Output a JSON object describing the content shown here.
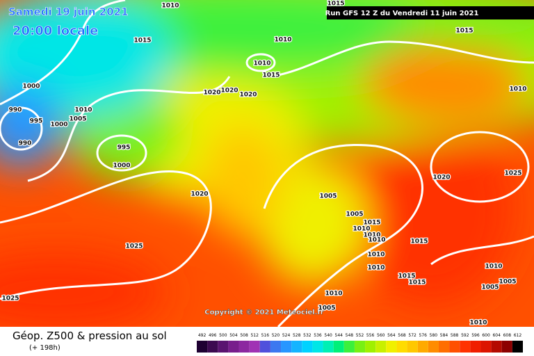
{
  "header": {
    "date": "Samedi 19 juin 2021",
    "time": "20:00 locale",
    "run": "Run GFS 12 Z du Vendredi 11 juin 2021"
  },
  "isobar_labels": [
    1010,
    1015,
    1015,
    1015,
    1010,
    1010,
    1015,
    1010,
    1000,
    990,
    995,
    990,
    1010,
    1005,
    1000,
    1020,
    1020,
    1020,
    995,
    1000,
    1020,
    1025,
    1020,
    1005,
    1005,
    1015,
    1010,
    1010,
    1010,
    1015,
    1025,
    1010,
    1010,
    1010,
    1015,
    1015,
    1005,
    1005,
    1025,
    1010,
    1005,
    1010
  ],
  "copyright": "Copyright © 2021 Meteociel.fr",
  "footer": {
    "title": "Géop. Z500 & pression au sol",
    "lead": "(+ 198h)"
  },
  "scale": {
    "values": [
      492,
      496,
      500,
      504,
      508,
      512,
      516,
      520,
      524,
      528,
      532,
      536,
      540,
      544,
      548,
      552,
      556,
      560,
      564,
      568,
      572,
      576,
      580,
      584,
      588,
      592,
      596,
      600,
      604,
      608,
      612
    ],
    "colors": [
      "#1e0032",
      "#3c0a50",
      "#5a1470",
      "#781e8c",
      "#8c28a0",
      "#a032b4",
      "#5050dc",
      "#3c78f0",
      "#2896ff",
      "#14b4ff",
      "#00d2ff",
      "#00e6e6",
      "#00f0b4",
      "#00f078",
      "#3cf03c",
      "#78f014",
      "#a0f000",
      "#c8f000",
      "#f0f000",
      "#ffdc00",
      "#ffc800",
      "#ffaa00",
      "#ff8c00",
      "#ff6e00",
      "#ff5000",
      "#ff3200",
      "#f01e00",
      "#dc1400",
      "#b40a00",
      "#8c0000",
      "#000000"
    ]
  }
}
